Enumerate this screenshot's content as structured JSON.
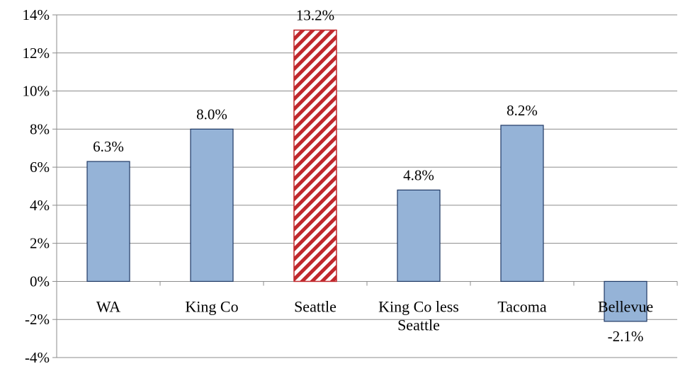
{
  "chart_data": {
    "type": "bar",
    "title": "",
    "xlabel": "",
    "ylabel": "",
    "categories": [
      "WA",
      "King Co",
      "Seattle",
      "King Co less Seattle",
      "Tacoma",
      "Bellevue"
    ],
    "category_lines": [
      [
        "WA"
      ],
      [
        "King Co"
      ],
      [
        "Seattle"
      ],
      [
        "King Co less",
        "Seattle"
      ],
      [
        "Tacoma"
      ],
      [
        "Bellevue"
      ]
    ],
    "values": [
      6.3,
      8.0,
      13.2,
      4.8,
      8.2,
      -2.1
    ],
    "data_labels": [
      "6.3%",
      "8.0%",
      "13.2%",
      "4.8%",
      "8.2%",
      "-2.1%"
    ],
    "ylim": [
      -4,
      14
    ],
    "yticks": [
      -4,
      -2,
      0,
      2,
      4,
      6,
      8,
      10,
      12,
      14
    ],
    "ytick_labels": [
      "-4%",
      "-2%",
      "0%",
      "2%",
      "4%",
      "6%",
      "8%",
      "10%",
      "12%",
      "14%"
    ],
    "grid": true,
    "legend": "none",
    "bar_color": "#95b3d7",
    "bar_edge_color": "#1f3864",
    "highlight_category": "Seattle",
    "highlight_pattern": "red-white diagonal hatch",
    "highlight_color": "#c0282d"
  }
}
